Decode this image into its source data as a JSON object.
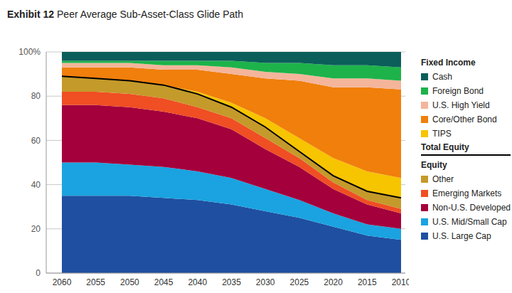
{
  "chart_data": {
    "type": "area",
    "title": "Exhibit 12 Peer Average Sub-Asset-Class Glide Path",
    "categories": [
      "2060",
      "2055",
      "2050",
      "2045",
      "2040",
      "2035",
      "2030",
      "2025",
      "2020",
      "2015",
      "2010"
    ],
    "ylim": [
      0,
      100
    ],
    "yticks": [
      0,
      20,
      40,
      60,
      80,
      {
        "value": 100,
        "label": "100%"
      }
    ],
    "grid": true,
    "stacked": true,
    "legend": "right",
    "groups": [
      {
        "name": "Fixed Income",
        "series": [
          "Cash",
          "Foreign Bond",
          "U.S. High Yield",
          "Core/Other Bond",
          "TIPS"
        ]
      },
      {
        "name": "Equity",
        "series": [
          "Other",
          "Emerging Markets",
          "Non-U.S. Developed",
          "U.S. Mid/Small Cap",
          "U.S. Large Cap"
        ]
      }
    ],
    "series": [
      {
        "name": "Cash",
        "color": "#0b5e5a",
        "values": [
          4,
          4,
          4,
          4,
          4,
          4,
          5,
          5,
          6,
          6,
          7
        ]
      },
      {
        "name": "Foreign Bond",
        "color": "#1db34a",
        "values": [
          1,
          1,
          1,
          2,
          2,
          3,
          4,
          5,
          6,
          6,
          6
        ]
      },
      {
        "name": "U.S. High Yield",
        "color": "#f4b59b",
        "values": [
          2,
          2,
          2,
          2,
          2,
          3,
          3,
          3,
          4,
          4,
          4
        ]
      },
      {
        "name": "Core/Other Bond",
        "color": "#f07f0c",
        "values": [
          4,
          5,
          6,
          7,
          10,
          13,
          18,
          26,
          32,
          38,
          40
        ]
      },
      {
        "name": "TIPS",
        "color": "#f7c400",
        "values": [
          0,
          0,
          0,
          0,
          1,
          2,
          4,
          6,
          8,
          9,
          9
        ]
      },
      {
        "name": "Total Equity",
        "color": "#000000",
        "type": "line",
        "values": [
          89,
          88,
          87,
          85,
          81,
          75,
          66,
          55,
          44,
          37,
          34
        ]
      },
      {
        "name": "Other",
        "color": "#c49a2a",
        "values": [
          7,
          6,
          6,
          6,
          6,
          5,
          5,
          3,
          3,
          4,
          5
        ]
      },
      {
        "name": "Emerging Markets",
        "color": "#f04e23",
        "values": [
          6,
          6,
          6,
          6,
          5,
          5,
          5,
          4,
          3,
          2,
          2
        ]
      },
      {
        "name": "Non-U.S. Developed",
        "color": "#a3003c",
        "values": [
          26,
          26,
          26,
          25,
          24,
          22,
          18,
          15,
          11,
          9,
          7
        ]
      },
      {
        "name": "U.S. Mid/Small Cap",
        "color": "#1aa3e0",
        "values": [
          15,
          15,
          14,
          14,
          13,
          12,
          10,
          8,
          6,
          5,
          5
        ]
      },
      {
        "name": "U.S. Large Cap",
        "color": "#1f4fa0",
        "values": [
          35,
          35,
          35,
          34,
          33,
          31,
          28,
          25,
          21,
          17,
          15
        ]
      }
    ]
  }
}
